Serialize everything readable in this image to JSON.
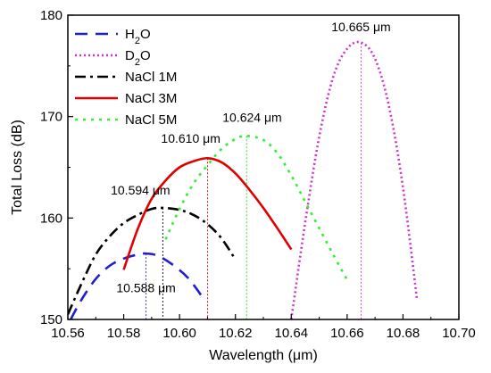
{
  "chart_data": {
    "type": "line",
    "xlabel": "Wavelength (μm)",
    "ylabel": "Total Loss (dB)",
    "xlim": [
      10.56,
      10.7
    ],
    "ylim": [
      150,
      180
    ],
    "x_ticks": [
      "10.56",
      "10.58",
      "10.60",
      "10.62",
      "10.64",
      "10.66",
      "10.68",
      "10.70"
    ],
    "y_ticks": [
      "150",
      "160",
      "170",
      "180"
    ],
    "legend_position": "top-left",
    "series": [
      {
        "name": "H2O",
        "legend_main": "H",
        "legend_sub": "2",
        "legend_tail": "O",
        "color": "#1f1fd0",
        "dash": "14,9",
        "x": [
          10.561,
          10.565,
          10.57,
          10.575,
          10.58,
          10.585,
          10.588,
          10.592,
          10.597,
          10.603,
          10.609
        ],
        "y": [
          150.0,
          152.0,
          154.0,
          155.3,
          156.0,
          156.4,
          156.5,
          156.3,
          155.5,
          154.1,
          151.9
        ]
      },
      {
        "name": "D2O",
        "legend_main": "D",
        "legend_sub": "2",
        "legend_tail": "O",
        "color": "#cc33cc",
        "dash": "2,3",
        "x": [
          10.64,
          10.645,
          10.65,
          10.655,
          10.66,
          10.665,
          10.67,
          10.675,
          10.68,
          10.685
        ],
        "y": [
          150.0,
          159.6,
          168.0,
          173.9,
          176.7,
          177.3,
          175.7,
          171.0,
          163.0,
          152.0
        ]
      },
      {
        "name": "NaCl 1M",
        "color": "#000000",
        "dash": "12,5,3,5",
        "x": [
          10.56,
          10.565,
          10.57,
          10.575,
          10.58,
          10.585,
          10.59,
          10.594,
          10.6,
          10.605,
          10.61,
          10.615,
          10.62
        ],
        "y": [
          150.5,
          153.6,
          156.4,
          158.2,
          159.5,
          160.3,
          160.9,
          161.0,
          160.8,
          160.3,
          159.4,
          158.0,
          155.9
        ]
      },
      {
        "name": "NaCl 3M",
        "color": "#e00000",
        "dash": "",
        "x": [
          10.58,
          10.585,
          10.59,
          10.595,
          10.6,
          10.605,
          10.61,
          10.615,
          10.62,
          10.625,
          10.63,
          10.635,
          10.64
        ],
        "y": [
          154.9,
          158.9,
          161.9,
          163.7,
          165.0,
          165.6,
          165.9,
          165.5,
          164.4,
          162.8,
          161.0,
          159.0,
          156.9
        ]
      },
      {
        "name": "NaCl 5M",
        "color": "#33ee33",
        "dash": "3,6",
        "x": [
          10.595,
          10.6,
          10.605,
          10.61,
          10.615,
          10.62,
          10.624,
          10.63,
          10.635,
          10.64,
          10.645,
          10.65,
          10.655,
          10.66
        ],
        "y": [
          157.9,
          160.9,
          163.4,
          165.2,
          166.8,
          167.8,
          168.1,
          167.7,
          166.4,
          164.2,
          161.6,
          159.0,
          156.4,
          153.9
        ]
      }
    ],
    "peak_markers": [
      {
        "x": 10.588,
        "y": 156.5,
        "label": "10.588 μm",
        "color": "#1f1fd0"
      },
      {
        "x": 10.594,
        "y": 161.0,
        "label": "10.594 μm",
        "color": "#000000"
      },
      {
        "x": 10.61,
        "y": 165.9,
        "label": "10.610 μm",
        "color": "#e00000"
      },
      {
        "x": 10.624,
        "y": 168.1,
        "label": "10.624 μm",
        "color": "#22cc22"
      },
      {
        "x": 10.665,
        "y": 177.3,
        "label": "10.665 μm",
        "color": "#cc33cc"
      }
    ]
  }
}
